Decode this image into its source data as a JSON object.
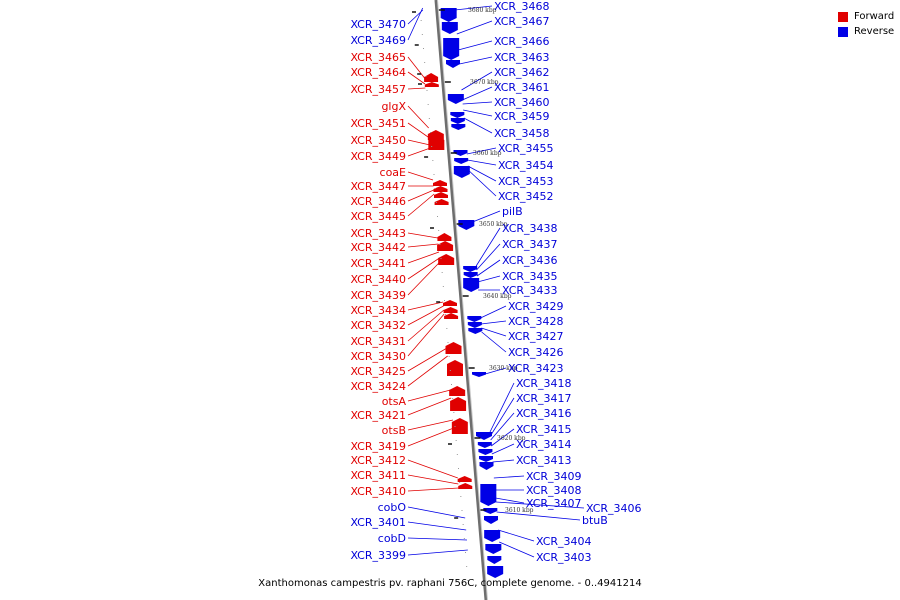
{
  "caption": "Xanthomonas campestris pv. raphani 756C, complete genome. - 0..4941214",
  "legend": [
    {
      "label": "Forward",
      "color": "#e00000"
    },
    {
      "label": "Reverse",
      "color": "#0000e6"
    }
  ],
  "colors": {
    "forward": "#e00000",
    "reverse": "#0000e6",
    "axis": "#8a8a8a"
  },
  "ticks": [
    "3680 kbp",
    "3670 kbp",
    "3660 kbp",
    "3650 kbp",
    "3640 kbp",
    "3630 kbp",
    "3620 kbp",
    "3610 kbp"
  ],
  "forward_genes": [
    "XCR_3470",
    "XCR_3469",
    "XCR_3465",
    "XCR_3464",
    "XCR_3457",
    "glgX",
    "XCR_3451",
    "XCR_3450",
    "XCR_3449",
    "coaE",
    "XCR_3447",
    "XCR_3446",
    "XCR_3445",
    "XCR_3443",
    "XCR_3442",
    "XCR_3441",
    "XCR_3440",
    "XCR_3439",
    "XCR_3434",
    "XCR_3432",
    "XCR_3431",
    "XCR_3430",
    "XCR_3425",
    "XCR_3424",
    "otsA",
    "XCR_3421",
    "otsB",
    "XCR_3419",
    "XCR_3412",
    "XCR_3411",
    "XCR_3410",
    "cobO",
    "XCR_3401",
    "cobD",
    "XCR_3399"
  ],
  "forward_strand": [
    "reverse",
    "reverse",
    "forward",
    "forward",
    "forward",
    "forward",
    "forward",
    "forward",
    "forward",
    "forward",
    "forward",
    "forward",
    "forward",
    "forward",
    "forward",
    "forward",
    "forward",
    "forward",
    "forward",
    "forward",
    "forward",
    "forward",
    "forward",
    "forward",
    "forward",
    "forward",
    "forward",
    "forward",
    "forward",
    "forward",
    "forward",
    "reverse",
    "reverse",
    "reverse",
    "reverse"
  ],
  "reverse_genes": [
    "XCR_3468",
    "XCR_3467",
    "XCR_3466",
    "XCR_3463",
    "XCR_3462",
    "XCR_3461",
    "XCR_3460",
    "XCR_3459",
    "XCR_3458",
    "XCR_3455",
    "XCR_3454",
    "XCR_3453",
    "XCR_3452",
    "pilB",
    "XCR_3438",
    "XCR_3437",
    "XCR_3436",
    "XCR_3435",
    "XCR_3433",
    "XCR_3429",
    "XCR_3428",
    "XCR_3427",
    "XCR_3426",
    "XCR_3423",
    "XCR_3418",
    "XCR_3417",
    "XCR_3416",
    "XCR_3415",
    "XCR_3414",
    "XCR_3413",
    "XCR_3409",
    "XCR_3408",
    "XCR_3407",
    "XCR_3406",
    "btuB",
    "XCR_3404",
    "XCR_3403"
  ]
}
